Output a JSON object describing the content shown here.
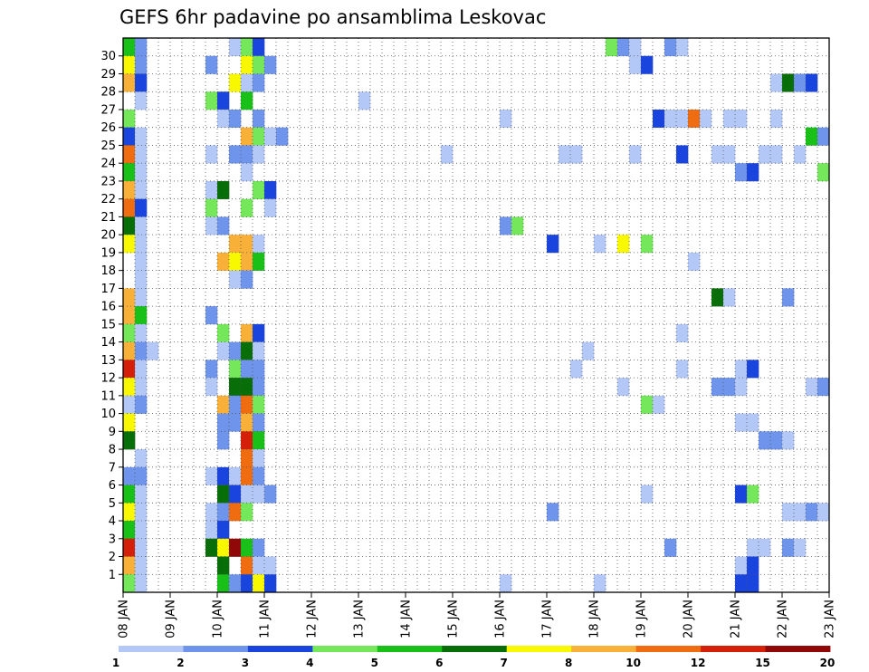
{
  "chart_data": {
    "type": "heatmap",
    "title": "GEFS 6hr padavine po ansamblima Leskovac",
    "xlabel": "",
    "ylabel": "",
    "x_tick_labels": [
      "08 JAN",
      "09 JAN",
      "10 JAN",
      "11 JAN",
      "12 JAN",
      "13 JAN",
      "14 JAN",
      "15 JAN",
      "16 JAN",
      "17 JAN",
      "18 JAN",
      "19 JAN",
      "20 JAN",
      "21 JAN",
      "22 JAN",
      "23 JAN"
    ],
    "y_tick_labels": [
      "1",
      "2",
      "3",
      "4",
      "5",
      "6",
      "7",
      "8",
      "9",
      "10",
      "11",
      "12",
      "13",
      "14",
      "15",
      "16",
      "17",
      "18",
      "19",
      "20",
      "21",
      "22",
      "23",
      "24",
      "25",
      "26",
      "27",
      "28",
      "29",
      "30"
    ],
    "grid": true,
    "legend": {
      "position": "bottom",
      "labels": [
        "1",
        "2",
        "3",
        "4",
        "5",
        "6",
        "7",
        "8",
        "10",
        "12",
        "15",
        "20"
      ],
      "colors": [
        "#b4c8f8",
        "#6e94ec",
        "#1a44de",
        "#74e85a",
        "#18c018",
        "#086e08",
        "#f8f800",
        "#f8b038",
        "#f06c10",
        "#d42008",
        "#900808"
      ]
    },
    "cells": [
      {
        "m": 30,
        "t": 0,
        "c": 5
      },
      {
        "m": 30,
        "t": 1,
        "c": 2
      },
      {
        "m": 30,
        "t": 9,
        "c": 1
      },
      {
        "m": 30,
        "t": 10,
        "c": 4
      },
      {
        "m": 30,
        "t": 11,
        "c": 3
      },
      {
        "m": 30,
        "t": 41,
        "c": 4
      },
      {
        "m": 30,
        "t": 42,
        "c": 2
      },
      {
        "m": 30,
        "t": 43,
        "c": 1
      },
      {
        "m": 30,
        "t": 46,
        "c": 2
      },
      {
        "m": 30,
        "t": 47,
        "c": 1
      },
      {
        "m": 29,
        "t": 0,
        "c": 7
      },
      {
        "m": 29,
        "t": 1,
        "c": 2
      },
      {
        "m": 29,
        "t": 7,
        "c": 2
      },
      {
        "m": 29,
        "t": 10,
        "c": 7
      },
      {
        "m": 29,
        "t": 11,
        "c": 4
      },
      {
        "m": 29,
        "t": 12,
        "c": 2
      },
      {
        "m": 29,
        "t": 43,
        "c": 1
      },
      {
        "m": 29,
        "t": 44,
        "c": 3
      },
      {
        "m": 28,
        "t": 0,
        "c": 8
      },
      {
        "m": 28,
        "t": 1,
        "c": 3
      },
      {
        "m": 28,
        "t": 9,
        "c": 7
      },
      {
        "m": 28,
        "t": 10,
        "c": 1
      },
      {
        "m": 28,
        "t": 11,
        "c": 2
      },
      {
        "m": 28,
        "t": 55,
        "c": 1
      },
      {
        "m": 28,
        "t": 56,
        "c": 6
      },
      {
        "m": 28,
        "t": 57,
        "c": 2
      },
      {
        "m": 28,
        "t": 58,
        "c": 3
      },
      {
        "m": 27,
        "t": 1,
        "c": 1
      },
      {
        "m": 27,
        "t": 7,
        "c": 4
      },
      {
        "m": 27,
        "t": 8,
        "c": 3
      },
      {
        "m": 27,
        "t": 10,
        "c": 5
      },
      {
        "m": 27,
        "t": 20,
        "c": 1
      },
      {
        "m": 26,
        "t": 0,
        "c": 4
      },
      {
        "m": 26,
        "t": 8,
        "c": 1
      },
      {
        "m": 26,
        "t": 9,
        "c": 2
      },
      {
        "m": 26,
        "t": 11,
        "c": 2
      },
      {
        "m": 26,
        "t": 32,
        "c": 1
      },
      {
        "m": 26,
        "t": 45,
        "c": 3
      },
      {
        "m": 26,
        "t": 46,
        "c": 1
      },
      {
        "m": 26,
        "t": 47,
        "c": 1
      },
      {
        "m": 26,
        "t": 48,
        "c": 9
      },
      {
        "m": 26,
        "t": 49,
        "c": 1
      },
      {
        "m": 26,
        "t": 51,
        "c": 1
      },
      {
        "m": 26,
        "t": 52,
        "c": 1
      },
      {
        "m": 26,
        "t": 55,
        "c": 1
      },
      {
        "m": 25,
        "t": 0,
        "c": 3
      },
      {
        "m": 25,
        "t": 1,
        "c": 1
      },
      {
        "m": 25,
        "t": 10,
        "c": 8
      },
      {
        "m": 25,
        "t": 11,
        "c": 4
      },
      {
        "m": 25,
        "t": 12,
        "c": 1
      },
      {
        "m": 25,
        "t": 13,
        "c": 2
      },
      {
        "m": 25,
        "t": 58,
        "c": 5
      },
      {
        "m": 25,
        "t": 59,
        "c": 2
      },
      {
        "m": 24,
        "t": 0,
        "c": 9
      },
      {
        "m": 24,
        "t": 1,
        "c": 1
      },
      {
        "m": 24,
        "t": 7,
        "c": 1
      },
      {
        "m": 24,
        "t": 9,
        "c": 2
      },
      {
        "m": 24,
        "t": 10,
        "c": 2
      },
      {
        "m": 24,
        "t": 11,
        "c": 1
      },
      {
        "m": 24,
        "t": 27,
        "c": 1
      },
      {
        "m": 24,
        "t": 37,
        "c": 1
      },
      {
        "m": 24,
        "t": 38,
        "c": 1
      },
      {
        "m": 24,
        "t": 43,
        "c": 1
      },
      {
        "m": 24,
        "t": 47,
        "c": 3
      },
      {
        "m": 24,
        "t": 50,
        "c": 1
      },
      {
        "m": 24,
        "t": 51,
        "c": 1
      },
      {
        "m": 24,
        "t": 54,
        "c": 1
      },
      {
        "m": 24,
        "t": 55,
        "c": 1
      },
      {
        "m": 24,
        "t": 57,
        "c": 1
      },
      {
        "m": 23,
        "t": 0,
        "c": 5
      },
      {
        "m": 23,
        "t": 1,
        "c": 1
      },
      {
        "m": 23,
        "t": 10,
        "c": 1
      },
      {
        "m": 23,
        "t": 52,
        "c": 2
      },
      {
        "m": 23,
        "t": 53,
        "c": 3
      },
      {
        "m": 23,
        "t": 59,
        "c": 4
      },
      {
        "m": 22,
        "t": 0,
        "c": 8
      },
      {
        "m": 22,
        "t": 1,
        "c": 1
      },
      {
        "m": 22,
        "t": 7,
        "c": 1
      },
      {
        "m": 22,
        "t": 8,
        "c": 6
      },
      {
        "m": 22,
        "t": 11,
        "c": 4
      },
      {
        "m": 22,
        "t": 12,
        "c": 3
      },
      {
        "m": 21,
        "t": 0,
        "c": 9
      },
      {
        "m": 21,
        "t": 1,
        "c": 3
      },
      {
        "m": 21,
        "t": 7,
        "c": 4
      },
      {
        "m": 21,
        "t": 10,
        "c": 4
      },
      {
        "m": 21,
        "t": 12,
        "c": 1
      },
      {
        "m": 20,
        "t": 0,
        "c": 6
      },
      {
        "m": 20,
        "t": 1,
        "c": 1
      },
      {
        "m": 20,
        "t": 7,
        "c": 1
      },
      {
        "m": 20,
        "t": 8,
        "c": 2
      },
      {
        "m": 20,
        "t": 32,
        "c": 2
      },
      {
        "m": 20,
        "t": 33,
        "c": 4
      },
      {
        "m": 19,
        "t": 0,
        "c": 7
      },
      {
        "m": 19,
        "t": 1,
        "c": 1
      },
      {
        "m": 19,
        "t": 9,
        "c": 8
      },
      {
        "m": 19,
        "t": 10,
        "c": 8
      },
      {
        "m": 19,
        "t": 11,
        "c": 1
      },
      {
        "m": 19,
        "t": 36,
        "c": 3
      },
      {
        "m": 19,
        "t": 40,
        "c": 1
      },
      {
        "m": 19,
        "t": 42,
        "c": 7
      },
      {
        "m": 19,
        "t": 44,
        "c": 4
      },
      {
        "m": 18,
        "t": 1,
        "c": 1
      },
      {
        "m": 18,
        "t": 8,
        "c": 8
      },
      {
        "m": 18,
        "t": 9,
        "c": 7
      },
      {
        "m": 18,
        "t": 10,
        "c": 8
      },
      {
        "m": 18,
        "t": 11,
        "c": 5
      },
      {
        "m": 18,
        "t": 48,
        "c": 1
      },
      {
        "m": 17,
        "t": 1,
        "c": 1
      },
      {
        "m": 17,
        "t": 9,
        "c": 1
      },
      {
        "m": 17,
        "t": 10,
        "c": 2
      },
      {
        "m": 16,
        "t": 0,
        "c": 8
      },
      {
        "m": 16,
        "t": 1,
        "c": 1
      },
      {
        "m": 16,
        "t": 50,
        "c": 6
      },
      {
        "m": 16,
        "t": 51,
        "c": 1
      },
      {
        "m": 16,
        "t": 56,
        "c": 2
      },
      {
        "m": 15,
        "t": 0,
        "c": 8
      },
      {
        "m": 15,
        "t": 1,
        "c": 5
      },
      {
        "m": 15,
        "t": 7,
        "c": 2
      },
      {
        "m": 14,
        "t": 0,
        "c": 4
      },
      {
        "m": 14,
        "t": 1,
        "c": 1
      },
      {
        "m": 14,
        "t": 8,
        "c": 4
      },
      {
        "m": 14,
        "t": 10,
        "c": 8
      },
      {
        "m": 14,
        "t": 11,
        "c": 3
      },
      {
        "m": 14,
        "t": 47,
        "c": 1
      },
      {
        "m": 13,
        "t": 0,
        "c": 8
      },
      {
        "m": 13,
        "t": 1,
        "c": 2
      },
      {
        "m": 13,
        "t": 2,
        "c": 1
      },
      {
        "m": 13,
        "t": 8,
        "c": 1
      },
      {
        "m": 13,
        "t": 9,
        "c": 2
      },
      {
        "m": 13,
        "t": 10,
        "c": 6
      },
      {
        "m": 13,
        "t": 11,
        "c": 1
      },
      {
        "m": 13,
        "t": 39,
        "c": 1
      },
      {
        "m": 12,
        "t": 0,
        "c": 10
      },
      {
        "m": 12,
        "t": 1,
        "c": 1
      },
      {
        "m": 12,
        "t": 7,
        "c": 2
      },
      {
        "m": 12,
        "t": 9,
        "c": 4
      },
      {
        "m": 12,
        "t": 10,
        "c": 2
      },
      {
        "m": 12,
        "t": 11,
        "c": 2
      },
      {
        "m": 12,
        "t": 38,
        "c": 1
      },
      {
        "m": 12,
        "t": 47,
        "c": 1
      },
      {
        "m": 12,
        "t": 52,
        "c": 1
      },
      {
        "m": 12,
        "t": 53,
        "c": 3
      },
      {
        "m": 11,
        "t": 0,
        "c": 7
      },
      {
        "m": 11,
        "t": 1,
        "c": 1
      },
      {
        "m": 11,
        "t": 7,
        "c": 1
      },
      {
        "m": 11,
        "t": 9,
        "c": 6
      },
      {
        "m": 11,
        "t": 10,
        "c": 6
      },
      {
        "m": 11,
        "t": 11,
        "c": 2
      },
      {
        "m": 11,
        "t": 42,
        "c": 1
      },
      {
        "m": 11,
        "t": 50,
        "c": 2
      },
      {
        "m": 11,
        "t": 51,
        "c": 2
      },
      {
        "m": 11,
        "t": 52,
        "c": 1
      },
      {
        "m": 11,
        "t": 58,
        "c": 1
      },
      {
        "m": 11,
        "t": 59,
        "c": 2
      },
      {
        "m": 10,
        "t": 0,
        "c": 1
      },
      {
        "m": 10,
        "t": 1,
        "c": 2
      },
      {
        "m": 10,
        "t": 8,
        "c": 8
      },
      {
        "m": 10,
        "t": 9,
        "c": 2
      },
      {
        "m": 10,
        "t": 10,
        "c": 9
      },
      {
        "m": 10,
        "t": 11,
        "c": 4
      },
      {
        "m": 10,
        "t": 44,
        "c": 4
      },
      {
        "m": 10,
        "t": 45,
        "c": 1
      },
      {
        "m": 9,
        "t": 0,
        "c": 7
      },
      {
        "m": 9,
        "t": 8,
        "c": 2
      },
      {
        "m": 9,
        "t": 9,
        "c": 2
      },
      {
        "m": 9,
        "t": 10,
        "c": 8
      },
      {
        "m": 9,
        "t": 11,
        "c": 2
      },
      {
        "m": 9,
        "t": 52,
        "c": 1
      },
      {
        "m": 9,
        "t": 53,
        "c": 1
      },
      {
        "m": 8,
        "t": 0,
        "c": 6
      },
      {
        "m": 8,
        "t": 8,
        "c": 2
      },
      {
        "m": 8,
        "t": 10,
        "c": 10
      },
      {
        "m": 8,
        "t": 11,
        "c": 5
      },
      {
        "m": 8,
        "t": 54,
        "c": 2
      },
      {
        "m": 8,
        "t": 55,
        "c": 2
      },
      {
        "m": 8,
        "t": 56,
        "c": 1
      },
      {
        "m": 7,
        "t": 1,
        "c": 1
      },
      {
        "m": 7,
        "t": 10,
        "c": 9
      },
      {
        "m": 7,
        "t": 11,
        "c": 1
      },
      {
        "m": 6,
        "t": 0,
        "c": 2
      },
      {
        "m": 6,
        "t": 1,
        "c": 2
      },
      {
        "m": 6,
        "t": 7,
        "c": 1
      },
      {
        "m": 6,
        "t": 8,
        "c": 3
      },
      {
        "m": 6,
        "t": 9,
        "c": 1
      },
      {
        "m": 6,
        "t": 10,
        "c": 9
      },
      {
        "m": 6,
        "t": 11,
        "c": 2
      },
      {
        "m": 5,
        "t": 0,
        "c": 5
      },
      {
        "m": 5,
        "t": 1,
        "c": 1
      },
      {
        "m": 5,
        "t": 8,
        "c": 6
      },
      {
        "m": 5,
        "t": 9,
        "c": 3
      },
      {
        "m": 5,
        "t": 10,
        "c": 1
      },
      {
        "m": 5,
        "t": 11,
        "c": 1
      },
      {
        "m": 5,
        "t": 12,
        "c": 2
      },
      {
        "m": 5,
        "t": 44,
        "c": 1
      },
      {
        "m": 5,
        "t": 52,
        "c": 3
      },
      {
        "m": 5,
        "t": 53,
        "c": 4
      },
      {
        "m": 4,
        "t": 0,
        "c": 7
      },
      {
        "m": 4,
        "t": 1,
        "c": 1
      },
      {
        "m": 4,
        "t": 7,
        "c": 1
      },
      {
        "m": 4,
        "t": 8,
        "c": 2
      },
      {
        "m": 4,
        "t": 9,
        "c": 9
      },
      {
        "m": 4,
        "t": 10,
        "c": 4
      },
      {
        "m": 4,
        "t": 36,
        "c": 2
      },
      {
        "m": 4,
        "t": 56,
        "c": 1
      },
      {
        "m": 4,
        "t": 57,
        "c": 1
      },
      {
        "m": 4,
        "t": 58,
        "c": 2
      },
      {
        "m": 4,
        "t": 59,
        "c": 1
      },
      {
        "m": 3,
        "t": 0,
        "c": 5
      },
      {
        "m": 3,
        "t": 1,
        "c": 1
      },
      {
        "m": 3,
        "t": 7,
        "c": 1
      },
      {
        "m": 3,
        "t": 8,
        "c": 3
      },
      {
        "m": 2,
        "t": 0,
        "c": 10
      },
      {
        "m": 2,
        "t": 1,
        "c": 1
      },
      {
        "m": 2,
        "t": 7,
        "c": 6
      },
      {
        "m": 2,
        "t": 8,
        "c": 7
      },
      {
        "m": 2,
        "t": 9,
        "c": 11
      },
      {
        "m": 2,
        "t": 10,
        "c": 5
      },
      {
        "m": 2,
        "t": 11,
        "c": 2
      },
      {
        "m": 2,
        "t": 46,
        "c": 2
      },
      {
        "m": 2,
        "t": 53,
        "c": 1
      },
      {
        "m": 2,
        "t": 54,
        "c": 1
      },
      {
        "m": 2,
        "t": 56,
        "c": 2
      },
      {
        "m": 2,
        "t": 57,
        "c": 1
      },
      {
        "m": 1,
        "t": 0,
        "c": 8
      },
      {
        "m": 1,
        "t": 1,
        "c": 1
      },
      {
        "m": 1,
        "t": 8,
        "c": 6
      },
      {
        "m": 1,
        "t": 10,
        "c": 9
      },
      {
        "m": 1,
        "t": 11,
        "c": 1
      },
      {
        "m": 1,
        "t": 12,
        "c": 1
      },
      {
        "m": 1,
        "t": 52,
        "c": 1
      },
      {
        "m": 1,
        "t": 53,
        "c": 3
      },
      {
        "m": 0,
        "t": 0,
        "c": 4
      },
      {
        "m": 0,
        "t": 1,
        "c": 1
      },
      {
        "m": 0,
        "t": 8,
        "c": 5
      },
      {
        "m": 0,
        "t": 9,
        "c": 2
      },
      {
        "m": 0,
        "t": 10,
        "c": 3
      },
      {
        "m": 0,
        "t": 11,
        "c": 7
      },
      {
        "m": 0,
        "t": 12,
        "c": 3
      },
      {
        "m": 0,
        "t": 32,
        "c": 1
      },
      {
        "m": 0,
        "t": 40,
        "c": 1
      },
      {
        "m": 0,
        "t": 52,
        "c": 3
      },
      {
        "m": 0,
        "t": 53,
        "c": 3
      }
    ]
  }
}
